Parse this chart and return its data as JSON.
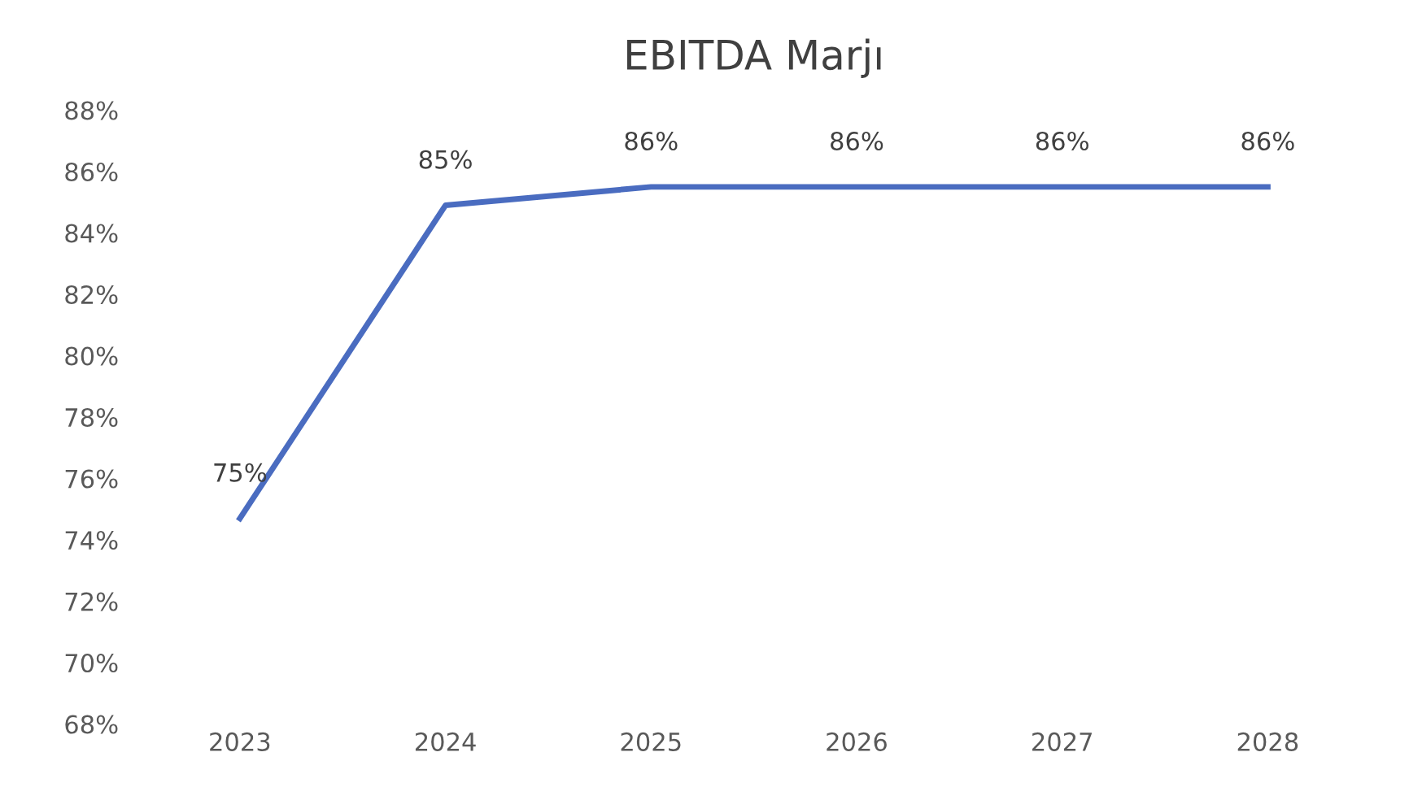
{
  "chart_data": {
    "type": "line",
    "title": "EBITDA Marjı",
    "categories": [
      "2023",
      "2024",
      "2025",
      "2026",
      "2027",
      "2028"
    ],
    "series": [
      {
        "color": "#4a6cc0",
        "values": [
          74.7,
          84.9,
          85.5,
          85.5,
          85.5,
          85.5
        ],
        "value_labels": [
          "75%",
          "85%",
          "86%",
          "86%",
          "86%",
          "86%"
        ]
      }
    ],
    "ylim": [
      68,
      88
    ],
    "yticks": [
      {
        "value": 68,
        "label": "68%"
      },
      {
        "value": 70,
        "label": "70%"
      },
      {
        "value": 72,
        "label": "72%"
      },
      {
        "value": 74,
        "label": "74%"
      },
      {
        "value": 76,
        "label": "76%"
      },
      {
        "value": 78,
        "label": "78%"
      },
      {
        "value": 80,
        "label": "80%"
      },
      {
        "value": 82,
        "label": "82%"
      },
      {
        "value": 84,
        "label": "84%"
      },
      {
        "value": 86,
        "label": "86%"
      },
      {
        "value": 88,
        "label": "88%"
      }
    ],
    "grid": false,
    "marker": "none",
    "line_style": "solid"
  }
}
